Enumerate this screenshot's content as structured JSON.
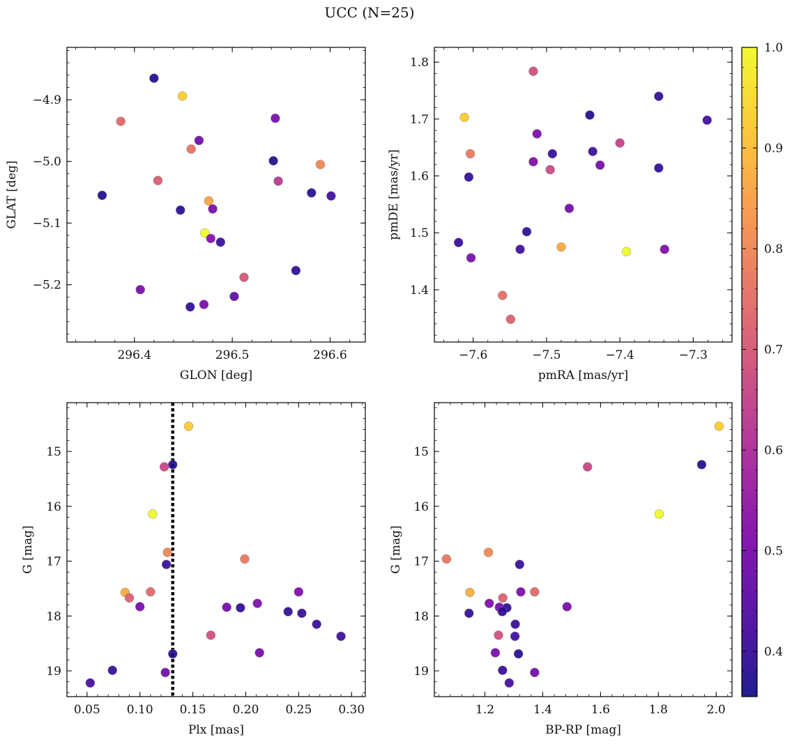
{
  "figure": {
    "suptitle": "UCC (N=25)"
  },
  "colorbar": {
    "colormap": "plasma",
    "range": [
      0.355,
      1.0
    ],
    "ticks": [
      0.4,
      0.5,
      0.6,
      0.7,
      0.8,
      0.9,
      1.0
    ],
    "tick_labels": [
      "0.4",
      "0.5",
      "0.6",
      "0.7",
      "0.8",
      "0.9",
      "1.0"
    ]
  },
  "chart_data": [
    {
      "type": "scatter",
      "title": "",
      "xlabel": "GLON [deg]",
      "ylabel": "GLAT [deg]",
      "xlim": [
        296.331,
        296.636
      ],
      "ylim": [
        -5.293,
        -4.815
      ],
      "y_inverted": false,
      "xticks": [
        296.4,
        296.5,
        296.6
      ],
      "xtick_labels": [
        "296.4",
        "296.5",
        "296.6"
      ],
      "yticks": [
        -4.9,
        -5.0,
        -5.1,
        -5.2
      ],
      "ytick_labels": [
        "−4.9",
        "−5.0",
        "−5.1",
        "−5.2"
      ],
      "points": [
        {
          "x": 296.42,
          "y": -4.865,
          "c": 0.37
        },
        {
          "x": 296.449,
          "y": -4.894,
          "c": 0.93
        },
        {
          "x": 296.386,
          "y": -4.935,
          "c": 0.74
        },
        {
          "x": 296.544,
          "y": -4.93,
          "c": 0.5
        },
        {
          "x": 296.466,
          "y": -4.966,
          "c": 0.49
        },
        {
          "x": 296.458,
          "y": -4.98,
          "c": 0.76
        },
        {
          "x": 296.542,
          "y": -4.999,
          "c": 0.37
        },
        {
          "x": 296.59,
          "y": -5.005,
          "c": 0.8
        },
        {
          "x": 296.424,
          "y": -5.031,
          "c": 0.71
        },
        {
          "x": 296.547,
          "y": -5.032,
          "c": 0.63
        },
        {
          "x": 296.581,
          "y": -5.051,
          "c": 0.38
        },
        {
          "x": 296.601,
          "y": -5.056,
          "c": 0.41
        },
        {
          "x": 296.367,
          "y": -5.055,
          "c": 0.37
        },
        {
          "x": 296.476,
          "y": -5.064,
          "c": 0.86
        },
        {
          "x": 296.447,
          "y": -5.079,
          "c": 0.38
        },
        {
          "x": 296.48,
          "y": -5.077,
          "c": 0.5
        },
        {
          "x": 296.472,
          "y": -5.116,
          "c": 1.0
        },
        {
          "x": 296.478,
          "y": -5.125,
          "c": 0.52
        },
        {
          "x": 296.488,
          "y": -5.131,
          "c": 0.4
        },
        {
          "x": 296.565,
          "y": -5.177,
          "c": 0.39
        },
        {
          "x": 296.512,
          "y": -5.188,
          "c": 0.7
        },
        {
          "x": 296.406,
          "y": -5.208,
          "c": 0.5
        },
        {
          "x": 296.502,
          "y": -5.219,
          "c": 0.46
        },
        {
          "x": 296.457,
          "y": -5.236,
          "c": 0.39
        },
        {
          "x": 296.471,
          "y": -5.232,
          "c": 0.5
        }
      ]
    },
    {
      "type": "scatter",
      "title": "",
      "xlabel": "pmRA [mas/yr]",
      "ylabel": "pmDE [mas/yr]",
      "xlim": [
        -7.653,
        -7.247
      ],
      "ylim": [
        1.308,
        1.826
      ],
      "y_inverted": false,
      "xticks": [
        -7.6,
        -7.5,
        -7.4,
        -7.3
      ],
      "xtick_labels": [
        "−7.6",
        "−7.5",
        "−7.4",
        "−7.3"
      ],
      "yticks": [
        1.4,
        1.5,
        1.6,
        1.7,
        1.8
      ],
      "ytick_labels": [
        "1.4",
        "1.5",
        "1.6",
        "1.7",
        "1.8"
      ],
      "points": [
        {
          "x": -7.518,
          "y": 1.784,
          "c": 0.68
        },
        {
          "x": -7.347,
          "y": 1.74,
          "c": 0.39
        },
        {
          "x": -7.441,
          "y": 1.707,
          "c": 0.37
        },
        {
          "x": -7.612,
          "y": 1.703,
          "c": 0.93
        },
        {
          "x": -7.281,
          "y": 1.698,
          "c": 0.41
        },
        {
          "x": -7.513,
          "y": 1.674,
          "c": 0.51
        },
        {
          "x": -7.4,
          "y": 1.658,
          "c": 0.65
        },
        {
          "x": -7.437,
          "y": 1.643,
          "c": 0.41
        },
        {
          "x": -7.604,
          "y": 1.639,
          "c": 0.77
        },
        {
          "x": -7.492,
          "y": 1.639,
          "c": 0.4
        },
        {
          "x": -7.518,
          "y": 1.625,
          "c": 0.51
        },
        {
          "x": -7.427,
          "y": 1.619,
          "c": 0.5
        },
        {
          "x": -7.347,
          "y": 1.614,
          "c": 0.39
        },
        {
          "x": -7.495,
          "y": 1.611,
          "c": 0.67
        },
        {
          "x": -7.606,
          "y": 1.598,
          "c": 0.39
        },
        {
          "x": -7.469,
          "y": 1.543,
          "c": 0.49
        },
        {
          "x": -7.527,
          "y": 1.502,
          "c": 0.39
        },
        {
          "x": -7.62,
          "y": 1.483,
          "c": 0.4
        },
        {
          "x": -7.48,
          "y": 1.475,
          "c": 0.87
        },
        {
          "x": -7.536,
          "y": 1.471,
          "c": 0.41
        },
        {
          "x": -7.339,
          "y": 1.471,
          "c": 0.51
        },
        {
          "x": -7.391,
          "y": 1.467,
          "c": 1.0
        },
        {
          "x": -7.603,
          "y": 1.456,
          "c": 0.5
        },
        {
          "x": -7.56,
          "y": 1.39,
          "c": 0.75
        },
        {
          "x": -7.549,
          "y": 1.348,
          "c": 0.72
        }
      ]
    },
    {
      "type": "scatter",
      "title": "",
      "xlabel": "Plx [mas]",
      "ylabel": "G [mag]",
      "xlim": [
        0.031,
        0.313
      ],
      "ylim": [
        14.11,
        19.47
      ],
      "y_inverted": true,
      "xticks": [
        0.05,
        0.1,
        0.15,
        0.2,
        0.25,
        0.3
      ],
      "xtick_labels": [
        "0.05",
        "0.10",
        "0.15",
        "0.20",
        "0.25",
        "0.30"
      ],
      "yticks": [
        15,
        16,
        17,
        18,
        19
      ],
      "ytick_labels": [
        "15",
        "16",
        "17",
        "18",
        "19"
      ],
      "vline": {
        "x": 0.131,
        "style": "dotted",
        "color": "#000000"
      },
      "points": [
        {
          "x": 0.146,
          "y": 14.54,
          "c": 0.93
        },
        {
          "x": 0.131,
          "y": 15.24,
          "c": 0.37
        },
        {
          "x": 0.123,
          "y": 15.28,
          "c": 0.66
        },
        {
          "x": 0.112,
          "y": 16.14,
          "c": 1.0
        },
        {
          "x": 0.126,
          "y": 16.84,
          "c": 0.8
        },
        {
          "x": 0.199,
          "y": 16.96,
          "c": 0.77
        },
        {
          "x": 0.125,
          "y": 17.06,
          "c": 0.4
        },
        {
          "x": 0.086,
          "y": 17.57,
          "c": 0.87
        },
        {
          "x": 0.11,
          "y": 17.56,
          "c": 0.74
        },
        {
          "x": 0.25,
          "y": 17.56,
          "c": 0.51
        },
        {
          "x": 0.09,
          "y": 17.67,
          "c": 0.72
        },
        {
          "x": 0.211,
          "y": 17.77,
          "c": 0.51
        },
        {
          "x": 0.1,
          "y": 17.83,
          "c": 0.5
        },
        {
          "x": 0.182,
          "y": 17.84,
          "c": 0.49
        },
        {
          "x": 0.195,
          "y": 17.85,
          "c": 0.39
        },
        {
          "x": 0.24,
          "y": 17.92,
          "c": 0.39
        },
        {
          "x": 0.253,
          "y": 17.95,
          "c": 0.4
        },
        {
          "x": 0.267,
          "y": 18.15,
          "c": 0.4
        },
        {
          "x": 0.167,
          "y": 18.35,
          "c": 0.68
        },
        {
          "x": 0.29,
          "y": 18.37,
          "c": 0.41
        },
        {
          "x": 0.213,
          "y": 18.67,
          "c": 0.5
        },
        {
          "x": 0.131,
          "y": 18.69,
          "c": 0.38
        },
        {
          "x": 0.074,
          "y": 18.99,
          "c": 0.4
        },
        {
          "x": 0.124,
          "y": 19.03,
          "c": 0.49
        },
        {
          "x": 0.053,
          "y": 19.22,
          "c": 0.42
        }
      ]
    },
    {
      "type": "scatter",
      "title": "",
      "xlabel": "BP-RP [mag]",
      "ylabel": "G [mag]",
      "xlim": [
        1.025,
        2.055
      ],
      "ylim": [
        14.11,
        19.47
      ],
      "y_inverted": true,
      "xticks": [
        1.2,
        1.4,
        1.6,
        1.8,
        2.0
      ],
      "xtick_labels": [
        "1.2",
        "1.4",
        "1.6",
        "1.8",
        "2.0"
      ],
      "yticks": [
        15,
        16,
        17,
        18,
        19
      ],
      "ytick_labels": [
        "15",
        "16",
        "17",
        "18",
        "19"
      ],
      "points": [
        {
          "x": 2.01,
          "y": 14.54,
          "c": 0.93
        },
        {
          "x": 1.95,
          "y": 15.24,
          "c": 0.37
        },
        {
          "x": 1.555,
          "y": 15.28,
          "c": 0.66
        },
        {
          "x": 1.803,
          "y": 16.14,
          "c": 1.0
        },
        {
          "x": 1.212,
          "y": 16.84,
          "c": 0.8
        },
        {
          "x": 1.067,
          "y": 16.96,
          "c": 0.77
        },
        {
          "x": 1.32,
          "y": 17.06,
          "c": 0.4
        },
        {
          "x": 1.148,
          "y": 17.57,
          "c": 0.87
        },
        {
          "x": 1.372,
          "y": 17.56,
          "c": 0.74
        },
        {
          "x": 1.324,
          "y": 17.56,
          "c": 0.51
        },
        {
          "x": 1.262,
          "y": 17.67,
          "c": 0.72
        },
        {
          "x": 1.215,
          "y": 17.77,
          "c": 0.51
        },
        {
          "x": 1.484,
          "y": 17.83,
          "c": 0.5
        },
        {
          "x": 1.25,
          "y": 17.84,
          "c": 0.49
        },
        {
          "x": 1.276,
          "y": 17.85,
          "c": 0.39
        },
        {
          "x": 1.26,
          "y": 17.92,
          "c": 0.39
        },
        {
          "x": 1.145,
          "y": 17.95,
          "c": 0.4
        },
        {
          "x": 1.305,
          "y": 18.15,
          "c": 0.4
        },
        {
          "x": 1.247,
          "y": 18.35,
          "c": 0.68
        },
        {
          "x": 1.304,
          "y": 18.37,
          "c": 0.41
        },
        {
          "x": 1.236,
          "y": 18.67,
          "c": 0.5
        },
        {
          "x": 1.316,
          "y": 18.69,
          "c": 0.38
        },
        {
          "x": 1.261,
          "y": 18.99,
          "c": 0.4
        },
        {
          "x": 1.372,
          "y": 19.03,
          "c": 0.49
        },
        {
          "x": 1.284,
          "y": 19.22,
          "c": 0.42
        }
      ]
    }
  ]
}
